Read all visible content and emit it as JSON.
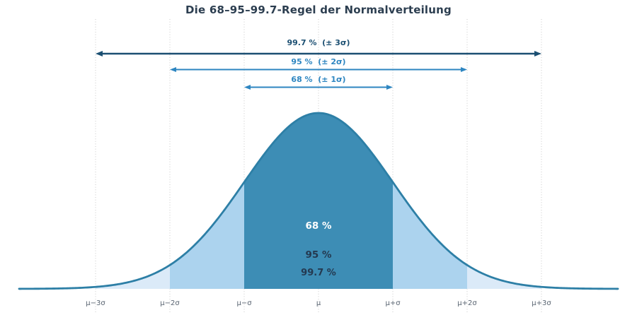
{
  "title": "Die 68–95–99.7-Regel der Normalverteilung",
  "colors": {
    "title_text": "#2c3e50",
    "dark_arrow": "#1b4f72",
    "blue_arrow": "#2e86c1",
    "curve": "#2d7fa6",
    "band_1sigma_fill": "#3d8db5",
    "band_2sigma_fill": "#acd3ee",
    "band_3sigma_fill": "#dbeaf8",
    "inner_label_light": "#ffffff",
    "inner_label_dark": "#243950",
    "tick_text": "#5a6572",
    "gridline": "#c9c9c9",
    "background": "#ffffff"
  },
  "chart_data": {
    "type": "area",
    "title": "Die 68–95–99.7-Regel der Normalverteilung",
    "description": "Normal distribution density curve with shaded regions illustrating the 68-95-99.7 rule",
    "x_tick_labels": [
      "μ−3σ",
      "μ−2σ",
      "μ−σ",
      "μ",
      "μ+σ",
      "μ+2σ",
      "μ+3σ"
    ],
    "x_range_sigma": [
      -4,
      4
    ],
    "grid": "vertical dotted gridlines at every integer sigma",
    "legend": "none",
    "y_axis": "none (density, unlabeled)",
    "bands": [
      {
        "id": "1sigma",
        "range_sigma": [
          -1,
          1
        ],
        "coverage_pct": 68,
        "label": "68 %",
        "fill": "#3d8db5",
        "label_color_key": "inner_label_light"
      },
      {
        "id": "2sigma",
        "range_sigma": [
          -2,
          2
        ],
        "coverage_pct": 95,
        "label": "95 %",
        "fill": "#acd3ee",
        "label_color_key": "inner_label_dark"
      },
      {
        "id": "3sigma",
        "range_sigma": [
          -3,
          3
        ],
        "coverage_pct": 99.7,
        "label": "99.7 %",
        "fill": "#dbeaf8",
        "label_color_key": "inner_label_dark"
      }
    ],
    "arrows": [
      {
        "id": "3sigma",
        "label": "99.7 %  (± 3σ)",
        "from_sigma": -3,
        "to_sigma": 3,
        "color": "#1b4f72"
      },
      {
        "id": "2sigma",
        "label": "95 %  (± 2σ)",
        "from_sigma": -2,
        "to_sigma": 2,
        "color": "#2e86c1"
      },
      {
        "id": "1sigma",
        "label": "68 %  (± 1σ)",
        "from_sigma": -1,
        "to_sigma": 1,
        "color": "#2e86c1"
      }
    ],
    "curve": {
      "distribution": "normal",
      "mean_label": "μ",
      "sigma_label": "σ",
      "color": "#2d7fa6"
    }
  }
}
